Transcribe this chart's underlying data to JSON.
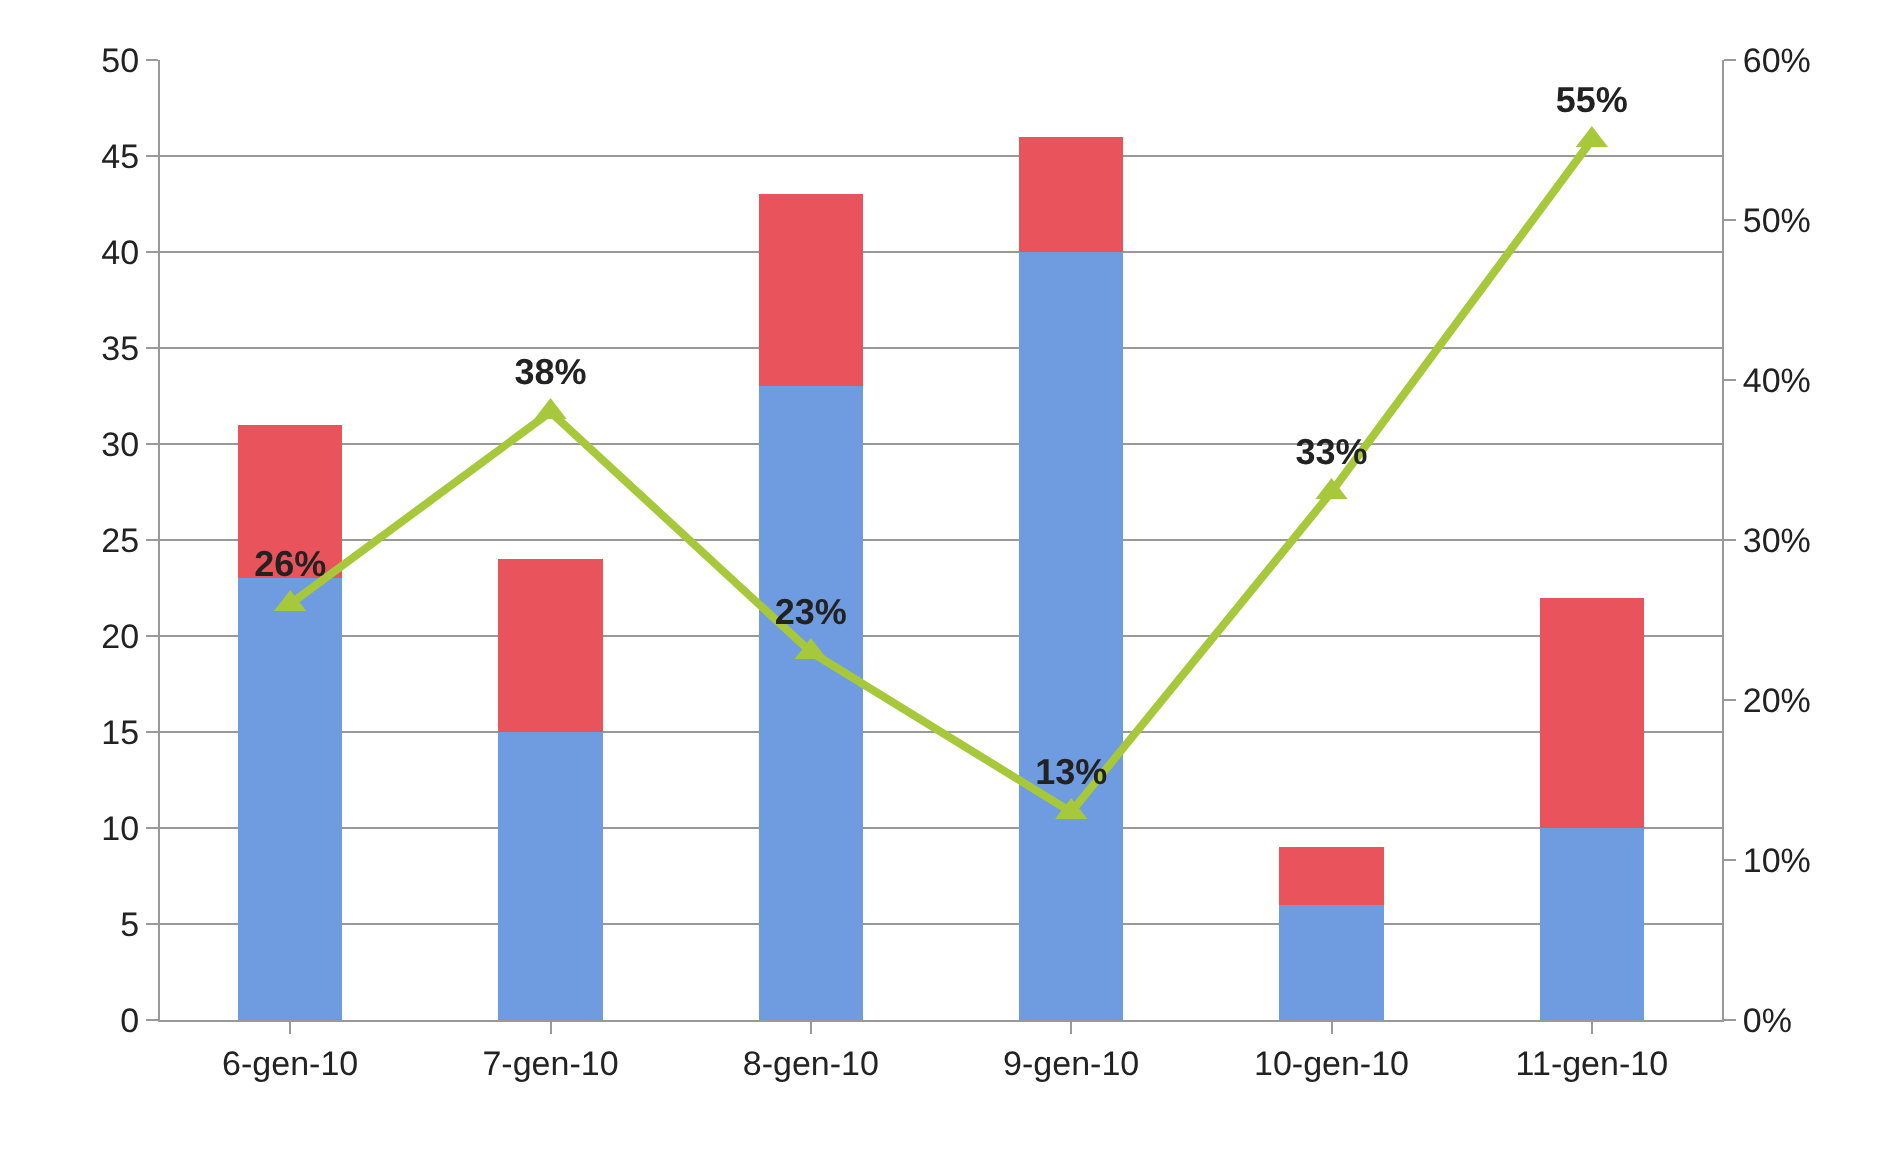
{
  "chart_data": {
    "type": "bar",
    "stacked": true,
    "categories": [
      "6-gen-10",
      "7-gen-10",
      "8-gen-10",
      "9-gen-10",
      "10-gen-10",
      "11-gen-10"
    ],
    "series": [
      {
        "color": "#6f9be0",
        "values": [
          23,
          15,
          33,
          40,
          6,
          10
        ]
      },
      {
        "color": "#e8535c",
        "values": [
          8,
          9,
          10,
          6,
          3,
          12
        ]
      },
      {
        "type": "line",
        "axis": "y2",
        "color": "#a8c83c",
        "marker": "triangle",
        "values": [
          26,
          38,
          23,
          13,
          33,
          55
        ],
        "value_labels": [
          "26%",
          "38%",
          "23%",
          "13%",
          "33%",
          "55%"
        ]
      }
    ],
    "ylim": [
      0,
      50
    ],
    "yticks": [
      0,
      5,
      10,
      15,
      20,
      25,
      30,
      35,
      40,
      45,
      50
    ],
    "y2lim": [
      0,
      60
    ],
    "y2ticks": [
      {
        "value": 0,
        "label": "0%"
      },
      {
        "value": 10,
        "label": "10%"
      },
      {
        "value": 20,
        "label": "20%"
      },
      {
        "value": 30,
        "label": "30%"
      },
      {
        "value": 40,
        "label": "40%"
      },
      {
        "value": 50,
        "label": "50%"
      },
      {
        "value": 60,
        "label": "60%"
      }
    ],
    "grid": "y",
    "legend": false
  }
}
